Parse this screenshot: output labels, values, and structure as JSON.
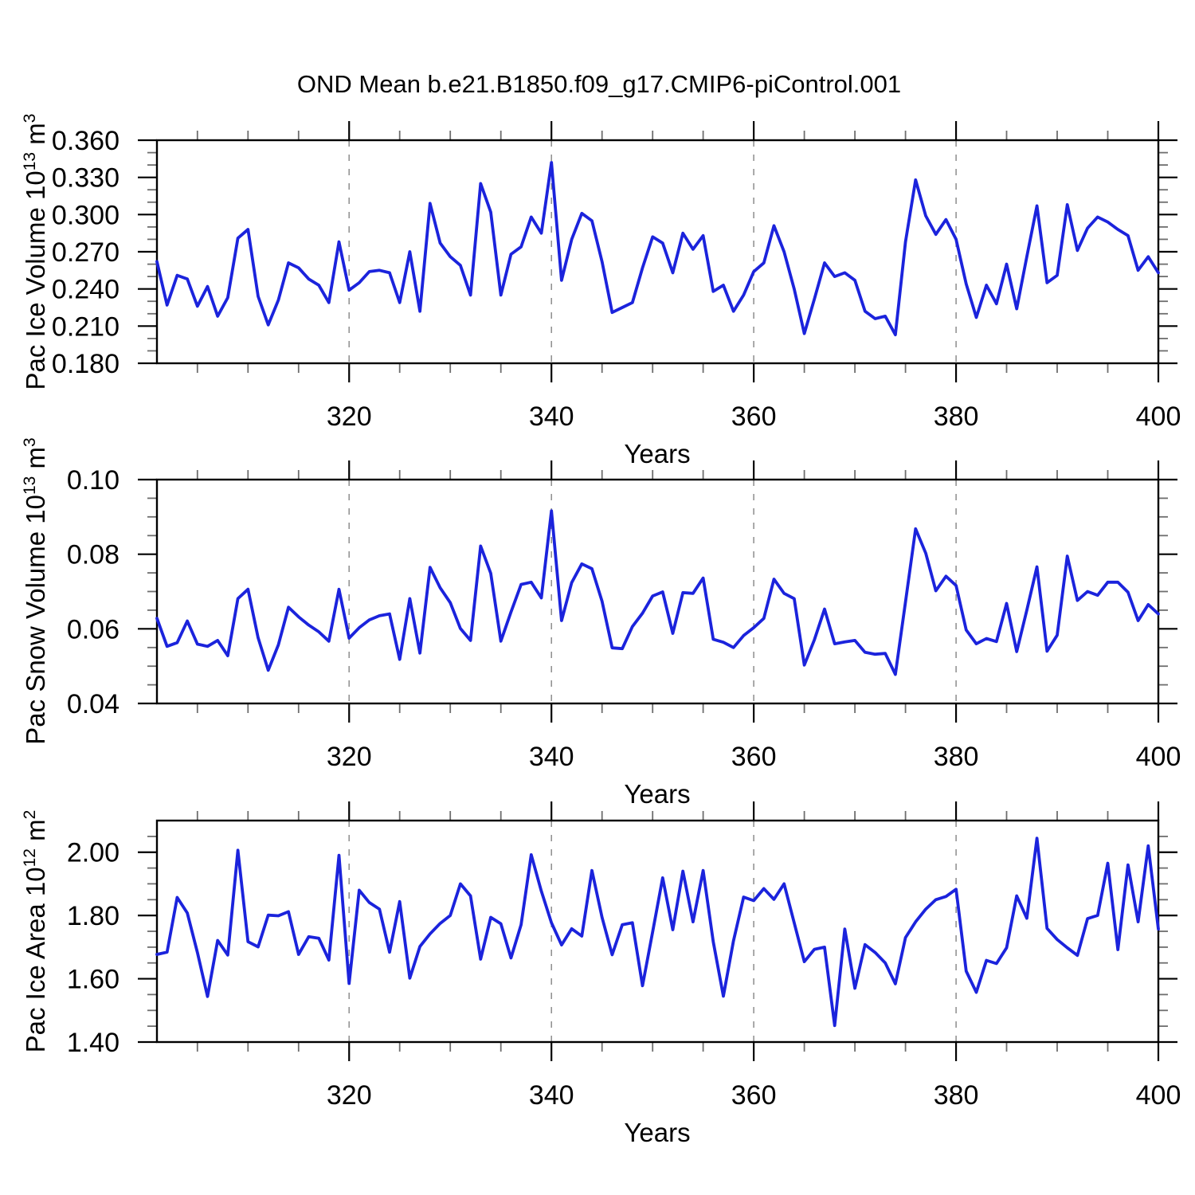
{
  "title": "OND Mean b.e21.B1850.f09_g17.CMIP6-piControl.001",
  "colors": {
    "line": "#1b23dc",
    "grid": "#8c8c8c",
    "axis": "#000000",
    "minor_tick": "#6e6e6e"
  },
  "x_axis": {
    "label": "Years",
    "start": 301,
    "end": 400,
    "major_ticks": [
      320,
      340,
      360,
      380,
      400
    ],
    "minor_step": 5,
    "gridlines": [
      320,
      340,
      360,
      380
    ]
  },
  "chart_data": [
    {
      "type": "line",
      "name": "pac-ice-volume",
      "title_parts": {
        "prefix": "Pac Ice Volume 10",
        "sup1": "13",
        "mid": " m",
        "sup2": "3"
      },
      "ylim": [
        0.18,
        0.36
      ],
      "ytick_major": 0.03,
      "ytick_minor": 0.01,
      "ytick_decimals": 3,
      "ytick_label_max": 0.36,
      "xlabel": "Years",
      "year_start": 301,
      "year_step": 1,
      "values": [
        0.262,
        0.227,
        0.251,
        0.248,
        0.226,
        0.242,
        0.218,
        0.233,
        0.281,
        0.288,
        0.234,
        0.211,
        0.231,
        0.261,
        0.257,
        0.248,
        0.243,
        0.229,
        0.278,
        0.239,
        0.245,
        0.254,
        0.255,
        0.253,
        0.229,
        0.27,
        0.222,
        0.309,
        0.277,
        0.266,
        0.259,
        0.235,
        0.325,
        0.302,
        0.235,
        0.268,
        0.274,
        0.298,
        0.285,
        0.342,
        0.247,
        0.28,
        0.301,
        0.295,
        0.262,
        0.221,
        0.225,
        0.229,
        0.257,
        0.282,
        0.277,
        0.253,
        0.285,
        0.272,
        0.283,
        0.238,
        0.243,
        0.222,
        0.235,
        0.254,
        0.261,
        0.291,
        0.27,
        0.24,
        0.204,
        0.232,
        0.261,
        0.25,
        0.253,
        0.247,
        0.222,
        0.216,
        0.218,
        0.203,
        0.278,
        0.328,
        0.299,
        0.284,
        0.296,
        0.28,
        0.244,
        0.217,
        0.243,
        0.228,
        0.26,
        0.224,
        0.266,
        0.307,
        0.245,
        0.251,
        0.308,
        0.271,
        0.289,
        0.298,
        0.294,
        0.288,
        0.283,
        0.255,
        0.266,
        0.253
      ]
    },
    {
      "type": "line",
      "name": "pac-snow-volume",
      "title_parts": {
        "prefix": "Pac Snow Volume 10",
        "sup1": "13",
        "mid": " m",
        "sup2": "3"
      },
      "ylim": [
        0.04,
        0.1
      ],
      "ytick_major": 0.02,
      "ytick_minor": 0.005,
      "ytick_decimals": 2,
      "ytick_label_max": 0.1,
      "xlabel": "Years",
      "year_start": 301,
      "year_step": 1,
      "values": [
        0.0628,
        0.0553,
        0.0563,
        0.0621,
        0.0559,
        0.0553,
        0.0569,
        0.0528,
        0.0681,
        0.0706,
        0.0576,
        0.0489,
        0.0557,
        0.0658,
        0.0632,
        0.061,
        0.0592,
        0.0567,
        0.0706,
        0.0575,
        0.0603,
        0.0624,
        0.0635,
        0.064,
        0.0518,
        0.0681,
        0.0535,
        0.0765,
        0.071,
        0.067,
        0.0601,
        0.0569,
        0.0822,
        0.0749,
        0.0567,
        0.0645,
        0.0719,
        0.0725,
        0.0683,
        0.0916,
        0.0622,
        0.0724,
        0.0774,
        0.0761,
        0.0674,
        0.0549,
        0.0547,
        0.0606,
        0.0642,
        0.0688,
        0.0699,
        0.0588,
        0.0697,
        0.0695,
        0.0736,
        0.0572,
        0.0564,
        0.055,
        0.0582,
        0.0603,
        0.0628,
        0.0733,
        0.0695,
        0.0681,
        0.0503,
        0.0571,
        0.0653,
        0.056,
        0.0565,
        0.0569,
        0.0537,
        0.0532,
        0.0534,
        0.0478,
        0.0672,
        0.0868,
        0.0803,
        0.0702,
        0.0741,
        0.0716,
        0.0597,
        0.056,
        0.0574,
        0.0566,
        0.0668,
        0.0539,
        0.065,
        0.0766,
        0.054,
        0.0583,
        0.0795,
        0.0676,
        0.07,
        0.069,
        0.0725,
        0.0725,
        0.0698,
        0.0622,
        0.0665,
        0.064
      ]
    },
    {
      "type": "line",
      "name": "pac-ice-area",
      "title_parts": {
        "prefix": "Pac Ice Area 10",
        "sup1": "12",
        "mid": " m",
        "sup2": "2"
      },
      "ylim": [
        1.4,
        2.1
      ],
      "ytick_major": 0.2,
      "ytick_minor": 0.05,
      "ytick_decimals": 2,
      "ytick_label_max": 2.0,
      "xlabel": "Years",
      "year_start": 301,
      "year_step": 1,
      "values": [
        1.677,
        1.684,
        1.857,
        1.808,
        1.683,
        1.544,
        1.721,
        1.675,
        2.006,
        1.717,
        1.701,
        1.801,
        1.799,
        1.812,
        1.677,
        1.733,
        1.728,
        1.659,
        1.99,
        1.585,
        1.88,
        1.841,
        1.82,
        1.684,
        1.844,
        1.602,
        1.702,
        1.742,
        1.775,
        1.8,
        1.9,
        1.862,
        1.662,
        1.794,
        1.774,
        1.666,
        1.771,
        1.992,
        1.877,
        1.777,
        1.707,
        1.758,
        1.735,
        1.942,
        1.794,
        1.676,
        1.771,
        1.777,
        1.578,
        1.748,
        1.919,
        1.755,
        1.94,
        1.78,
        1.942,
        1.717,
        1.545,
        1.72,
        1.858,
        1.847,
        1.885,
        1.851,
        1.9,
        1.777,
        1.654,
        1.693,
        1.7,
        1.452,
        1.757,
        1.57,
        1.708,
        1.683,
        1.65,
        1.584,
        1.73,
        1.78,
        1.82,
        1.85,
        1.86,
        1.883,
        1.624,
        1.557,
        1.658,
        1.648,
        1.698,
        1.862,
        1.791,
        2.044,
        1.759,
        1.724,
        1.698,
        1.674,
        1.79,
        1.8,
        1.965,
        1.692,
        1.96,
        1.78,
        2.02,
        1.757
      ]
    }
  ]
}
